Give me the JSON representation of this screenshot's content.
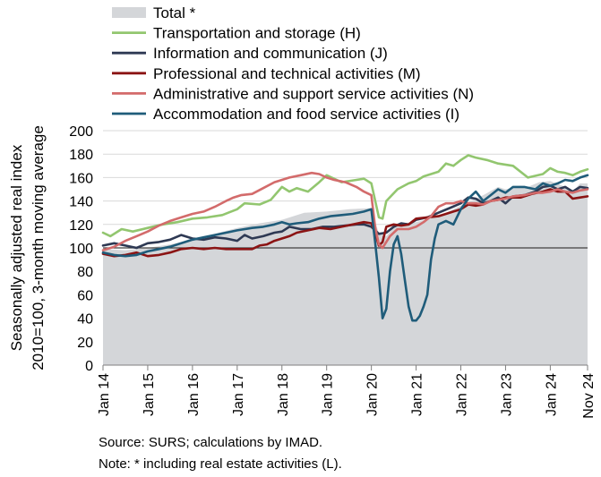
{
  "chart_data": {
    "type": "line",
    "title": "",
    "xlabel": "",
    "ylabel": "Seasonally adjusted real index\n2010=100, 3-month moving average",
    "ylim": [
      0,
      200
    ],
    "y_ticks": [
      "0",
      "20",
      "40",
      "60",
      "80",
      "100",
      "120",
      "140",
      "160",
      "180",
      "200"
    ],
    "x_tick_labels": [
      "Jan 14",
      "Jan 15",
      "Jan 16",
      "Jan 17",
      "Jan 18",
      "Jan 19",
      "Jan 20",
      "Jan 21",
      "Jan 22",
      "Jan 23",
      "Jan 24",
      "Nov 24"
    ],
    "x_tick_positions": [
      0,
      12,
      24,
      36,
      48,
      60,
      72,
      84,
      96,
      108,
      120,
      130
    ],
    "x_range": [
      0,
      130
    ],
    "grid": "horizontal",
    "reference_line": 100,
    "legend_position": "top",
    "series": [
      {
        "name": "Total *",
        "style": "area",
        "color": "#d4d6d9",
        "points": [
          [
            0,
            99
          ],
          [
            6,
            98
          ],
          [
            12,
            100
          ],
          [
            18,
            103
          ],
          [
            24,
            107
          ],
          [
            30,
            112
          ],
          [
            36,
            117
          ],
          [
            42,
            121
          ],
          [
            48,
            124
          ],
          [
            54,
            130
          ],
          [
            60,
            131
          ],
          [
            66,
            133
          ],
          [
            72,
            134
          ],
          [
            74,
            112
          ],
          [
            76,
            110
          ],
          [
            79,
            121
          ],
          [
            84,
            122
          ],
          [
            90,
            127
          ],
          [
            96,
            136
          ],
          [
            102,
            145
          ],
          [
            106,
            152
          ],
          [
            108,
            150
          ],
          [
            112,
            153
          ],
          [
            114,
            152
          ],
          [
            117,
            156
          ],
          [
            120,
            157
          ],
          [
            124,
            152
          ],
          [
            126,
            148
          ],
          [
            128,
            155
          ],
          [
            130,
            155
          ]
        ]
      },
      {
        "name": "Transportation and storage (H)",
        "style": "line",
        "color": "#92c66f",
        "points": [
          [
            0,
            113
          ],
          [
            2,
            110
          ],
          [
            5,
            116
          ],
          [
            8,
            114
          ],
          [
            12,
            117
          ],
          [
            16,
            120
          ],
          [
            20,
            122
          ],
          [
            24,
            125
          ],
          [
            28,
            126
          ],
          [
            32,
            128
          ],
          [
            36,
            133
          ],
          [
            38,
            138
          ],
          [
            42,
            137
          ],
          [
            45,
            141
          ],
          [
            48,
            152
          ],
          [
            50,
            148
          ],
          [
            52,
            151
          ],
          [
            55,
            148
          ],
          [
            58,
            156
          ],
          [
            60,
            162
          ],
          [
            64,
            156
          ],
          [
            68,
            158
          ],
          [
            70,
            159
          ],
          [
            72,
            155
          ],
          [
            74,
            126
          ],
          [
            75,
            125
          ],
          [
            76,
            140
          ],
          [
            79,
            150
          ],
          [
            82,
            155
          ],
          [
            84,
            157
          ],
          [
            86,
            161
          ],
          [
            90,
            165
          ],
          [
            92,
            172
          ],
          [
            94,
            170
          ],
          [
            96,
            175
          ],
          [
            98,
            179
          ],
          [
            100,
            177
          ],
          [
            103,
            175
          ],
          [
            106,
            172
          ],
          [
            110,
            170
          ],
          [
            114,
            160
          ],
          [
            118,
            163
          ],
          [
            120,
            168
          ],
          [
            122,
            165
          ],
          [
            124,
            164
          ],
          [
            126,
            162
          ],
          [
            128,
            165
          ],
          [
            130,
            167
          ]
        ]
      },
      {
        "name": "Information and communication (J)",
        "style": "line",
        "color": "#2e3953",
        "points": [
          [
            0,
            102
          ],
          [
            3,
            104
          ],
          [
            6,
            102
          ],
          [
            9,
            100
          ],
          [
            12,
            104
          ],
          [
            15,
            105
          ],
          [
            18,
            107
          ],
          [
            21,
            111
          ],
          [
            24,
            108
          ],
          [
            27,
            107
          ],
          [
            30,
            109
          ],
          [
            33,
            108
          ],
          [
            36,
            106
          ],
          [
            38,
            111
          ],
          [
            40,
            108
          ],
          [
            43,
            110
          ],
          [
            46,
            113
          ],
          [
            48,
            114
          ],
          [
            50,
            118
          ],
          [
            53,
            116
          ],
          [
            56,
            116
          ],
          [
            59,
            118
          ],
          [
            62,
            118
          ],
          [
            65,
            119
          ],
          [
            68,
            120
          ],
          [
            70,
            120
          ],
          [
            72,
            118
          ],
          [
            74,
            112
          ],
          [
            76,
            113
          ],
          [
            78,
            118
          ],
          [
            80,
            121
          ],
          [
            82,
            120
          ],
          [
            84,
            124
          ],
          [
            87,
            126
          ],
          [
            90,
            130
          ],
          [
            93,
            134
          ],
          [
            96,
            138
          ],
          [
            98,
            143
          ],
          [
            100,
            142
          ],
          [
            102,
            138
          ],
          [
            104,
            140
          ],
          [
            106,
            143
          ],
          [
            108,
            138
          ],
          [
            110,
            144
          ],
          [
            113,
            145
          ],
          [
            116,
            148
          ],
          [
            118,
            152
          ],
          [
            120,
            153
          ],
          [
            122,
            150
          ],
          [
            124,
            152
          ],
          [
            126,
            148
          ],
          [
            128,
            152
          ],
          [
            130,
            151
          ]
        ]
      },
      {
        "name": "Professional and technical activities (M)",
        "style": "line",
        "color": "#8b1414",
        "points": [
          [
            0,
            95
          ],
          [
            3,
            93
          ],
          [
            6,
            94
          ],
          [
            9,
            96
          ],
          [
            12,
            93
          ],
          [
            15,
            94
          ],
          [
            18,
            96
          ],
          [
            21,
            99
          ],
          [
            24,
            100
          ],
          [
            27,
            99
          ],
          [
            30,
            100
          ],
          [
            33,
            99
          ],
          [
            36,
            99
          ],
          [
            40,
            99
          ],
          [
            42,
            102
          ],
          [
            44,
            103
          ],
          [
            46,
            106
          ],
          [
            48,
            108
          ],
          [
            50,
            110
          ],
          [
            52,
            113
          ],
          [
            55,
            115
          ],
          [
            58,
            117
          ],
          [
            61,
            116
          ],
          [
            64,
            118
          ],
          [
            67,
            120
          ],
          [
            70,
            122
          ],
          [
            72,
            121
          ],
          [
            73,
            113
          ],
          [
            74,
            102
          ],
          [
            75,
            105
          ],
          [
            76,
            118
          ],
          [
            78,
            120
          ],
          [
            80,
            119
          ],
          [
            82,
            120
          ],
          [
            84,
            125
          ],
          [
            87,
            126
          ],
          [
            90,
            127
          ],
          [
            92,
            129
          ],
          [
            94,
            131
          ],
          [
            96,
            133
          ],
          [
            98,
            137
          ],
          [
            100,
            136
          ],
          [
            102,
            137
          ],
          [
            104,
            140
          ],
          [
            106,
            141
          ],
          [
            108,
            143
          ],
          [
            112,
            143
          ],
          [
            115,
            146
          ],
          [
            118,
            148
          ],
          [
            120,
            150
          ],
          [
            122,
            148
          ],
          [
            124,
            148
          ],
          [
            126,
            142
          ],
          [
            128,
            143
          ],
          [
            130,
            144
          ]
        ]
      },
      {
        "name": "Administrative and support service activities (N)",
        "style": "line",
        "color": "#d36b6b",
        "points": [
          [
            0,
            98
          ],
          [
            3,
            101
          ],
          [
            6,
            106
          ],
          [
            9,
            110
          ],
          [
            12,
            114
          ],
          [
            15,
            119
          ],
          [
            18,
            123
          ],
          [
            21,
            126
          ],
          [
            24,
            129
          ],
          [
            27,
            131
          ],
          [
            30,
            135
          ],
          [
            33,
            140
          ],
          [
            35,
            143
          ],
          [
            37,
            145
          ],
          [
            40,
            146
          ],
          [
            43,
            151
          ],
          [
            46,
            156
          ],
          [
            48,
            158
          ],
          [
            50,
            160
          ],
          [
            53,
            162
          ],
          [
            56,
            164
          ],
          [
            58,
            163
          ],
          [
            60,
            160
          ],
          [
            62,
            158
          ],
          [
            65,
            156
          ],
          [
            68,
            152
          ],
          [
            70,
            148
          ],
          [
            72,
            145
          ],
          [
            73,
            118
          ],
          [
            74,
            103
          ],
          [
            75,
            100
          ],
          [
            77,
            110
          ],
          [
            79,
            116
          ],
          [
            82,
            116
          ],
          [
            84,
            118
          ],
          [
            86,
            122
          ],
          [
            88,
            127
          ],
          [
            90,
            135
          ],
          [
            92,
            138
          ],
          [
            94,
            138
          ],
          [
            96,
            140
          ],
          [
            98,
            138
          ],
          [
            100,
            138
          ],
          [
            102,
            137
          ],
          [
            104,
            140
          ],
          [
            106,
            141
          ],
          [
            108,
            142
          ],
          [
            110,
            144
          ],
          [
            113,
            145
          ],
          [
            116,
            147
          ],
          [
            118,
            147
          ],
          [
            120,
            148
          ],
          [
            122,
            150
          ],
          [
            124,
            148
          ],
          [
            126,
            147
          ],
          [
            128,
            149
          ],
          [
            130,
            150
          ]
        ]
      },
      {
        "name": "Accommodation and food service activities (I)",
        "style": "line",
        "color": "#1f5c7a",
        "points": [
          [
            0,
            96
          ],
          [
            3,
            94
          ],
          [
            6,
            93
          ],
          [
            9,
            94
          ],
          [
            12,
            97
          ],
          [
            15,
            99
          ],
          [
            18,
            101
          ],
          [
            21,
            104
          ],
          [
            24,
            107
          ],
          [
            27,
            109
          ],
          [
            30,
            111
          ],
          [
            33,
            113
          ],
          [
            36,
            115
          ],
          [
            40,
            117
          ],
          [
            43,
            118
          ],
          [
            46,
            120
          ],
          [
            48,
            122
          ],
          [
            50,
            120
          ],
          [
            52,
            121
          ],
          [
            55,
            122
          ],
          [
            58,
            125
          ],
          [
            61,
            127
          ],
          [
            64,
            128
          ],
          [
            67,
            129
          ],
          [
            70,
            131
          ],
          [
            72,
            133
          ],
          [
            73,
            105
          ],
          [
            74,
            75
          ],
          [
            75,
            40
          ],
          [
            76,
            48
          ],
          [
            77,
            80
          ],
          [
            78,
            103
          ],
          [
            79,
            110
          ],
          [
            80,
            95
          ],
          [
            81,
            72
          ],
          [
            82,
            50
          ],
          [
            83,
            38
          ],
          [
            84,
            38
          ],
          [
            85,
            42
          ],
          [
            86,
            50
          ],
          [
            87,
            60
          ],
          [
            88,
            90
          ],
          [
            89,
            108
          ],
          [
            90,
            120
          ],
          [
            92,
            123
          ],
          [
            94,
            120
          ],
          [
            96,
            133
          ],
          [
            98,
            142
          ],
          [
            100,
            148
          ],
          [
            102,
            140
          ],
          [
            104,
            145
          ],
          [
            106,
            150
          ],
          [
            108,
            147
          ],
          [
            110,
            152
          ],
          [
            113,
            152
          ],
          [
            116,
            150
          ],
          [
            118,
            155
          ],
          [
            120,
            153
          ],
          [
            122,
            155
          ],
          [
            124,
            158
          ],
          [
            126,
            157
          ],
          [
            128,
            160
          ],
          [
            130,
            162
          ]
        ]
      }
    ]
  },
  "notes": {
    "source": "Source:  SURS; calculations by IMAD.",
    "note": "Note: * including real estate activities (L)."
  }
}
